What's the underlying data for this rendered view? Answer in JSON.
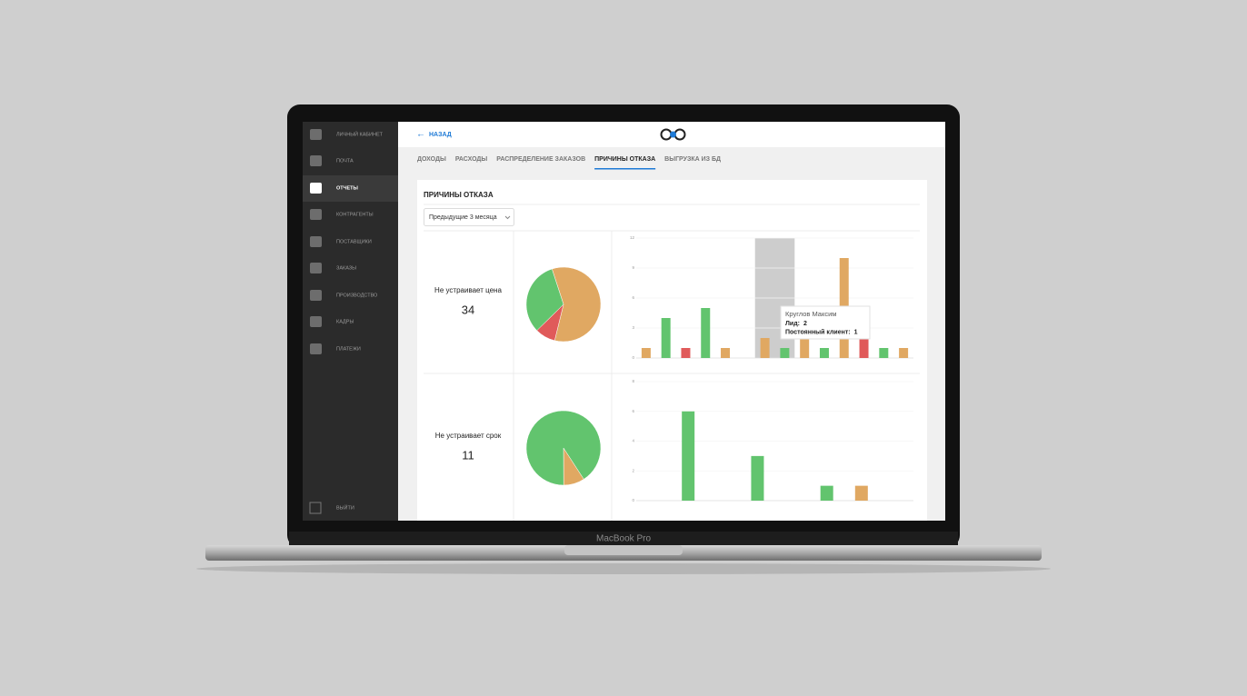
{
  "device_label": "MacBook Pro",
  "sidebar": {
    "items": [
      "ЛИЧНЫЙ КАБИНЕТ",
      "ПОЧТА",
      "ОТЧЕТЫ",
      "КОНТРАГЕНТЫ",
      "ПОСТАВЩИКИ",
      "ЗАКАЗЫ",
      "ПРОИЗВОДСТВО",
      "КАДРЫ",
      "ПЛАТЕЖИ"
    ],
    "active": 2,
    "logout": "ВЫЙТИ"
  },
  "header": {
    "back": "НАЗАД"
  },
  "tabs": {
    "items": [
      "ДОХОДЫ",
      "РАСХОДЫ",
      "РАСПРЕДЕЛЕНИЕ ЗАКАЗОВ",
      "ПРИЧИНЫ ОТКАЗА",
      "ВЫГРУЗКА ИЗ БД"
    ],
    "active": 3
  },
  "panel": {
    "title": "ПРИЧИНЫ ОТКАЗА",
    "filter": "Предыдущие 3 месяца",
    "rows": [
      {
        "label": "Не устраивает цена",
        "count": 34,
        "pie": {
          "type": "pie",
          "values": [
            20,
            3,
            11
          ],
          "colors": [
            "#e0a862",
            "#e05a5a",
            "#62c46e"
          ]
        },
        "bars": {
          "type": "bar",
          "values": [
            1,
            4,
            1,
            5,
            1,
            null,
            2,
            1,
            2,
            1,
            10,
            2,
            1,
            1
          ],
          "colors": [
            "#e0a862",
            "#62c46e",
            "#e05a5a",
            "#62c46e",
            "#e0a862",
            null,
            "#e0a862",
            "#62c46e",
            "#e0a862",
            "#62c46e",
            "#e0a862",
            "#e05a5a",
            "#62c46e",
            "#e0a862"
          ],
          "ylim": [
            0,
            12
          ],
          "yticks": [
            0,
            3,
            6,
            9,
            12
          ],
          "grid": true,
          "tooltip": {
            "title": "Круглов Максим",
            "rows": [
              {
                "label": "Лид:",
                "value": 2
              },
              {
                "label": "Постоянный клиент:",
                "value": 1
              }
            ]
          }
        }
      },
      {
        "label": "Не устраивает срок",
        "count": 11,
        "pie": {
          "type": "pie",
          "values": [
            1,
            10
          ],
          "colors": [
            "#e0a862",
            "#62c46e"
          ]
        },
        "bars": {
          "type": "bar",
          "values": [
            null,
            6,
            null,
            3,
            null,
            1,
            1,
            null
          ],
          "colors": [
            null,
            "#62c46e",
            null,
            "#62c46e",
            null,
            "#62c46e",
            "#e0a862",
            null
          ],
          "ylim": [
            0,
            8
          ],
          "yticks": [
            0,
            2,
            4,
            6,
            8
          ],
          "grid": true
        }
      }
    ]
  }
}
